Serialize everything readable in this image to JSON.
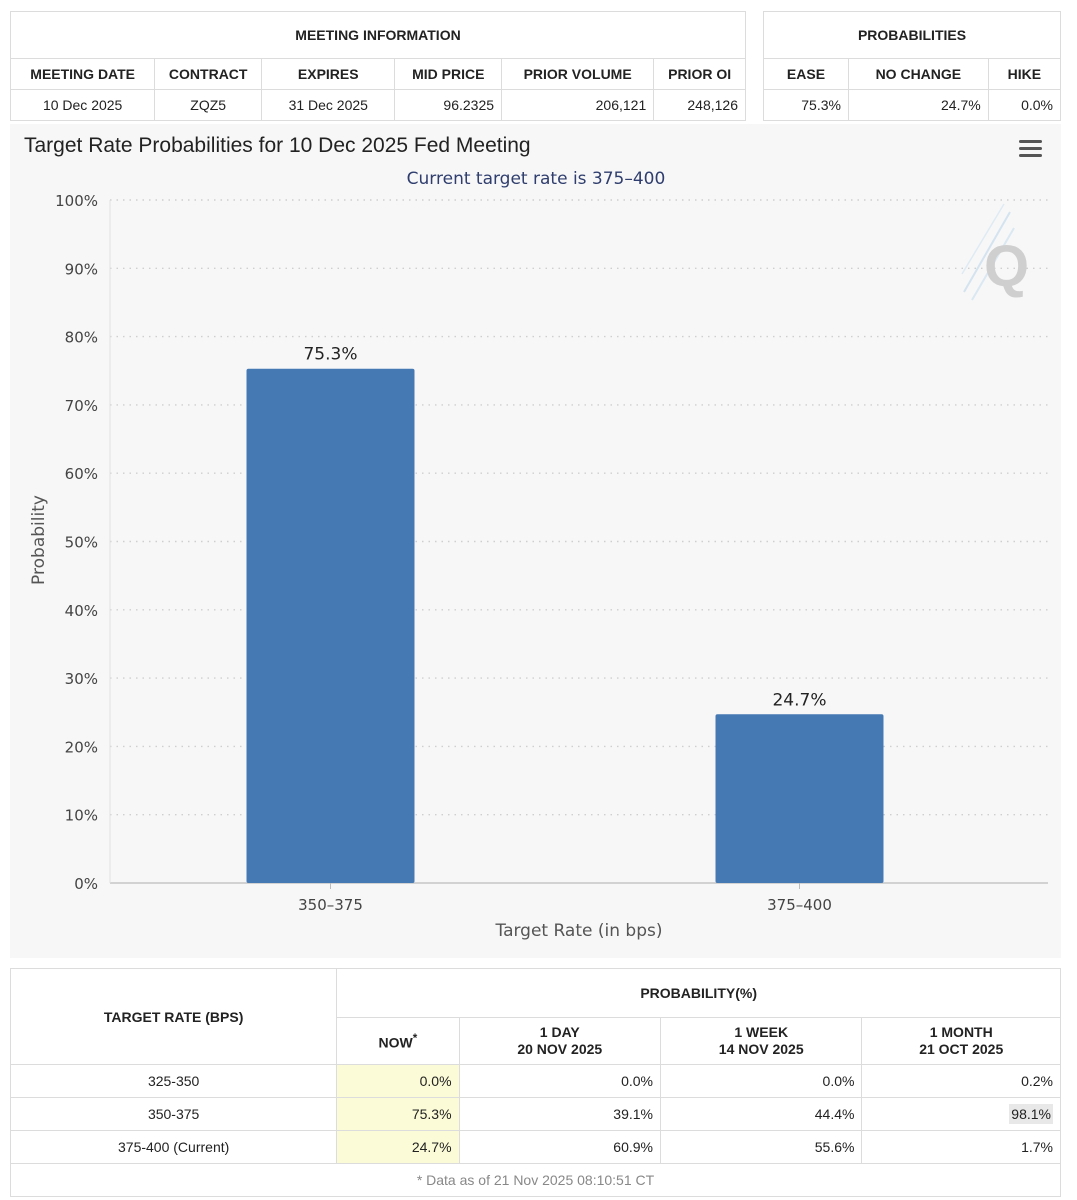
{
  "meeting_info": {
    "section_title": "MEETING INFORMATION",
    "headers": [
      "MEETING DATE",
      "CONTRACT",
      "EXPIRES",
      "MID PRICE",
      "PRIOR VOLUME",
      "PRIOR OI"
    ],
    "values": [
      "10 Dec 2025",
      "ZQZ5",
      "31 Dec 2025",
      "96.2325",
      "206,121",
      "248,126"
    ]
  },
  "probabilities": {
    "section_title": "PROBABILITIES",
    "headers": [
      "EASE",
      "NO CHANGE",
      "HIKE"
    ],
    "values": [
      "75.3%",
      "24.7%",
      "0.0%"
    ]
  },
  "chart_data": {
    "type": "bar",
    "title": "Target Rate Probabilities for 10 Dec 2025 Fed Meeting",
    "subtitle": "Current target rate is 375–400",
    "xlabel": "Target Rate (in bps)",
    "ylabel": "Probability",
    "categories": [
      "350–375",
      "375–400"
    ],
    "values": [
      75.3,
      24.7
    ],
    "data_labels": [
      "75.3%",
      "24.7%"
    ],
    "ylim": [
      0,
      100
    ],
    "yticks": [
      0,
      10,
      20,
      30,
      40,
      50,
      60,
      70,
      80,
      90,
      100
    ],
    "ytick_labels": [
      "0%",
      "10%",
      "20%",
      "30%",
      "40%",
      "50%",
      "60%",
      "70%",
      "80%",
      "90%",
      "100%"
    ],
    "grid": "dotted horizontal",
    "bar_color": "#4579b3",
    "watermark": "Q"
  },
  "history": {
    "row_header": "TARGET RATE (BPS)",
    "group_header": "PROBABILITY(%)",
    "columns": [
      {
        "line1": "NOW",
        "sup": "*",
        "line2": ""
      },
      {
        "line1": "1 DAY",
        "line2": "20 NOV 2025"
      },
      {
        "line1": "1 WEEK",
        "line2": "14 NOV 2025"
      },
      {
        "line1": "1 MONTH",
        "line2": "21 OCT 2025"
      }
    ],
    "rows": [
      {
        "rate": "325-350",
        "values": [
          "0.0%",
          "0.0%",
          "0.0%",
          "0.2%"
        ]
      },
      {
        "rate": "350-375",
        "values": [
          "75.3%",
          "39.1%",
          "44.4%",
          "98.1%"
        ]
      },
      {
        "rate": "375-400 (Current)",
        "values": [
          "24.7%",
          "60.9%",
          "55.6%",
          "1.7%"
        ]
      }
    ],
    "note": "* Data as of 21 Nov 2025 08:10:51 CT"
  },
  "colors": {
    "accent": "#4579b3",
    "subtitle": "#2f3e6e",
    "now_column": "#fbfbd7"
  }
}
